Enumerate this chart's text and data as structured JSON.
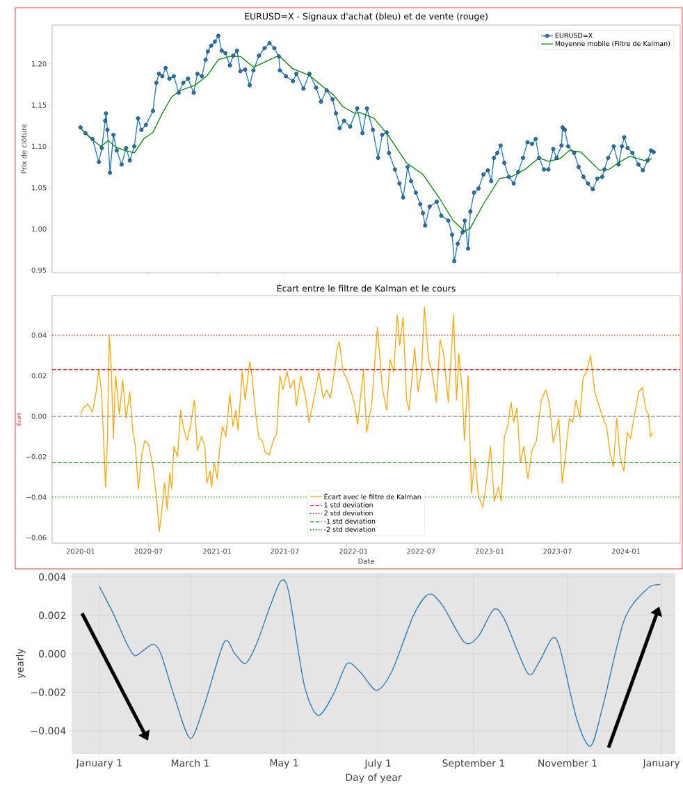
{
  "chart_data": [
    {
      "type": "line",
      "title": "EURUSD=X - Signaux d'achat (bleu) et de vente (rouge)",
      "ylabel": "Prix de clôture",
      "xlim": [
        "2019-10-17",
        "2024-05-25"
      ],
      "xticks": [
        "2020-01",
        "2020-07",
        "2021-01",
        "2021-07",
        "2022-01",
        "2022-07",
        "2023-01",
        "2023-07",
        "2024-01"
      ],
      "ylim": [
        0.947,
        1.247
      ],
      "yticks": [
        0.95,
        {
          "value": 1.0,
          "label": "1.00"
        },
        1.05,
        {
          "value": 1.1,
          "label": "1.10"
        },
        1.15,
        {
          "value": 1.2,
          "label": "1.20"
        }
      ],
      "tick_labels": "y",
      "legend": "top right",
      "marker": "circle",
      "series": [
        {
          "name": "EURUSD=X",
          "color": "#1f77b4",
          "x": [
            "2020-01-01",
            "2020-01-14",
            "2020-02-02",
            "2020-02-19",
            "2020-02-27",
            "2020-03-07",
            "2020-03-09",
            "2020-03-13",
            "2020-03-20",
            "2020-03-29",
            "2020-04-07",
            "2020-04-20",
            "2020-05-02",
            "2020-05-12",
            "2020-05-24",
            "2020-06-03",
            "2020-06-12",
            "2020-06-24",
            "2020-07-13",
            "2020-07-22",
            "2020-07-29",
            "2020-08-07",
            "2020-08-16",
            "2020-08-26",
            "2020-09-07",
            "2020-09-20",
            "2020-10-02",
            "2020-10-15",
            "2020-10-30",
            "2020-11-09",
            "2020-11-21",
            "2020-12-01",
            "2020-12-07",
            "2020-12-16",
            "2020-12-26",
            "2021-01-04",
            "2021-01-13",
            "2021-01-23",
            "2021-02-04",
            "2021-02-13",
            "2021-02-23",
            "2021-03-04",
            "2021-03-17",
            "2021-03-29",
            "2021-04-08",
            "2021-04-23",
            "2021-05-08",
            "2021-05-21",
            "2021-06-03",
            "2021-06-15",
            "2021-06-18",
            "2021-07-04",
            "2021-07-23",
            "2021-08-01",
            "2021-08-20",
            "2021-09-05",
            "2021-09-23",
            "2021-10-06",
            "2021-10-21",
            "2021-11-06",
            "2021-11-15",
            "2021-11-25",
            "2021-12-07",
            "2021-12-23",
            "2022-01-11",
            "2022-01-25",
            "2022-02-06",
            "2022-02-22",
            "2022-03-08",
            "2022-03-19",
            "2022-03-31",
            "2022-04-06",
            "2022-04-22",
            "2022-05-04",
            "2022-05-14",
            "2022-05-26",
            "2022-06-04",
            "2022-06-17",
            "2022-06-29",
            "2022-07-06",
            "2022-07-12",
            "2022-07-24",
            "2022-08-12",
            "2022-08-24",
            "2022-09-12",
            "2022-09-22",
            "2022-09-28",
            "2022-10-07",
            "2022-10-20",
            "2022-10-26",
            "2022-11-04",
            "2022-11-10",
            "2022-11-20",
            "2022-12-02",
            "2022-12-15",
            "2022-12-27",
            "2023-01-05",
            "2023-01-12",
            "2023-01-21",
            "2023-01-30",
            "2023-02-09",
            "2023-02-21",
            "2023-03-06",
            "2023-03-18",
            "2023-03-31",
            "2023-04-12",
            "2023-04-24",
            "2023-05-04",
            "2023-05-13",
            "2023-05-26",
            "2023-06-07",
            "2023-06-20",
            "2023-06-29",
            "2023-07-12",
            "2023-07-15",
            "2023-07-21",
            "2023-07-30",
            "2023-08-15",
            "2023-08-27",
            "2023-09-09",
            "2023-09-21",
            "2023-10-04",
            "2023-10-16",
            "2023-10-29",
            "2023-11-04",
            "2023-11-14",
            "2023-11-29",
            "2023-12-12",
            "2023-12-21",
            "2023-12-27",
            "2024-01-05",
            "2024-01-18",
            "2024-02-03",
            "2024-02-15",
            "2024-02-28",
            "2024-03-08",
            "2024-03-15"
          ],
          "values": [
            1.123,
            1.116,
            1.109,
            1.081,
            1.098,
            1.131,
            1.14,
            1.12,
            1.068,
            1.114,
            1.095,
            1.078,
            1.098,
            1.083,
            1.1,
            1.134,
            1.12,
            1.126,
            1.143,
            1.177,
            1.188,
            1.185,
            1.195,
            1.182,
            1.185,
            1.165,
            1.177,
            1.182,
            1.165,
            1.188,
            1.185,
            1.205,
            1.215,
            1.222,
            1.227,
            1.234,
            1.216,
            1.213,
            1.198,
            1.21,
            1.216,
            1.191,
            1.193,
            1.174,
            1.192,
            1.21,
            1.219,
            1.225,
            1.219,
            1.209,
            1.192,
            1.185,
            1.179,
            1.188,
            1.17,
            1.188,
            1.171,
            1.154,
            1.168,
            1.157,
            1.14,
            1.122,
            1.131,
            1.124,
            1.146,
            1.116,
            1.146,
            1.12,
            1.086,
            1.114,
            1.117,
            1.092,
            1.072,
            1.055,
            1.038,
            1.075,
            1.058,
            1.044,
            1.03,
            1.019,
            1.004,
            1.027,
            1.033,
            1.016,
            1.01,
            0.993,
            0.961,
            0.982,
            0.996,
            1.01,
            0.976,
            1.021,
            1.044,
            1.049,
            1.066,
            1.071,
            1.058,
            1.086,
            1.092,
            1.101,
            1.08,
            1.063,
            1.055,
            1.069,
            1.086,
            1.105,
            1.103,
            1.109,
            1.086,
            1.072,
            1.072,
            1.097,
            1.086,
            1.101,
            1.123,
            1.12,
            1.1,
            1.092,
            1.075,
            1.063,
            1.055,
            1.048,
            1.061,
            1.063,
            1.072,
            1.086,
            1.1,
            1.078,
            1.1,
            1.111,
            1.098,
            1.092,
            1.078,
            1.071,
            1.083,
            1.095,
            1.093
          ]
        },
        {
          "name": "Moyenne mobile (Filtre de Kalman)",
          "color": "#008000",
          "marker": "none",
          "x": [
            "2020-01-01",
            "2020-01-27",
            "2020-02-24",
            "2020-03-16",
            "2020-04-04",
            "2020-04-29",
            "2020-05-24",
            "2020-06-18",
            "2020-07-13",
            "2020-08-07",
            "2020-09-01",
            "2020-09-26",
            "2020-11-02",
            "2020-12-04",
            "2021-01-04",
            "2021-02-04",
            "2021-03-04",
            "2021-04-08",
            "2021-05-08",
            "2021-06-15",
            "2021-07-23",
            "2021-09-05",
            "2021-10-12",
            "2021-11-09",
            "2021-12-04",
            "2022-01-04",
            "2022-01-18",
            "2022-02-25",
            "2022-04-03",
            "2022-05-23",
            "2022-07-06",
            "2022-08-18",
            "2022-09-25",
            "2022-10-26",
            "2022-11-10",
            "2022-12-15",
            "2023-01-27",
            "2023-02-27",
            "2023-04-05",
            "2023-05-13",
            "2023-06-07",
            "2023-07-08",
            "2023-08-02",
            "2023-09-02",
            "2023-10-22",
            "2023-11-16",
            "2023-12-11",
            "2024-01-11",
            "2024-02-18",
            "2024-03-10"
          ],
          "values": [
            1.122,
            1.11,
            1.1,
            1.107,
            1.099,
            1.095,
            1.092,
            1.109,
            1.117,
            1.14,
            1.16,
            1.168,
            1.174,
            1.185,
            1.205,
            1.209,
            1.209,
            1.196,
            1.202,
            1.21,
            1.194,
            1.186,
            1.172,
            1.162,
            1.148,
            1.14,
            1.141,
            1.134,
            1.114,
            1.08,
            1.066,
            1.038,
            1.01,
            0.997,
            1.001,
            1.03,
            1.061,
            1.063,
            1.072,
            1.086,
            1.082,
            1.085,
            1.095,
            1.093,
            1.071,
            1.072,
            1.08,
            1.088,
            1.083,
            1.085
          ]
        }
      ]
    },
    {
      "type": "line",
      "title": "Écart entre le filtre de Kalman et le cours",
      "xlabel": "Date",
      "ylabel": "Écart",
      "xlim": [
        "2019-10-17",
        "2024-05-25"
      ],
      "xticks": [
        "2020-01",
        "2020-07",
        "2021-01",
        "2021-07",
        "2022-01",
        "2022-07",
        "2023-01",
        "2023-07",
        "2024-01"
      ],
      "ylim": [
        -0.0627,
        0.0596
      ],
      "yticks": [
        {
          "value": -0.06,
          "label": "−0.06"
        },
        {
          "value": -0.04,
          "label": "−0.04"
        },
        {
          "value": -0.02,
          "label": "−0.02"
        },
        {
          "value": 0,
          "label": "0.00"
        },
        0.02,
        0.04
      ],
      "legend": "bottom",
      "series": [
        {
          "name": "Écart avec le filtre de Kalman",
          "color": "#ffa500",
          "x": [
            "2020-01-01",
            "2020-01-08",
            "2020-01-20",
            "2020-02-02",
            "2020-02-11",
            "2020-02-19",
            "2020-02-26",
            "2020-03-03",
            "2020-03-08",
            "2020-03-13",
            "2020-03-18",
            "2020-03-23",
            "2020-03-29",
            "2020-04-04",
            "2020-04-14",
            "2020-04-23",
            "2020-05-02",
            "2020-05-12",
            "2020-05-19",
            "2020-05-27",
            "2020-06-04",
            "2020-06-13",
            "2020-06-21",
            "2020-07-01",
            "2020-07-13",
            "2020-07-23",
            "2020-07-30",
            "2020-08-07",
            "2020-08-13",
            "2020-08-20",
            "2020-08-27",
            "2020-09-01",
            "2020-09-07",
            "2020-09-17",
            "2020-09-25",
            "2020-10-02",
            "2020-10-12",
            "2020-10-21",
            "2020-11-01",
            "2020-11-09",
            "2020-11-20",
            "2020-11-29",
            "2020-12-04",
            "2020-12-13",
            "2020-12-17",
            "2020-12-24",
            "2021-01-01",
            "2021-01-07",
            "2021-01-15",
            "2021-01-24",
            "2021-02-04",
            "2021-02-12",
            "2021-02-20",
            "2021-02-26",
            "2021-03-09",
            "2021-03-17",
            "2021-03-29",
            "2021-04-04",
            "2021-04-14",
            "2021-04-23",
            "2021-05-01",
            "2021-05-10",
            "2021-05-21",
            "2021-05-31",
            "2021-06-09",
            "2021-06-18",
            "2021-06-26",
            "2021-07-07",
            "2021-07-16",
            "2021-07-26",
            "2021-08-01",
            "2021-08-13",
            "2021-08-26",
            "2021-09-04",
            "2021-09-12",
            "2021-09-23",
            "2021-09-30",
            "2021-10-12",
            "2021-10-21",
            "2021-10-31",
            "2021-11-11",
            "2021-11-18",
            "2021-11-24",
            "2021-12-04",
            "2021-12-13",
            "2021-12-26",
            "2022-01-04",
            "2022-01-12",
            "2022-01-28",
            "2022-02-05",
            "2022-02-19",
            "2022-03-06",
            "2022-03-19",
            "2022-03-31",
            "2022-04-09",
            "2022-04-19",
            "2022-04-28",
            "2022-05-05",
            "2022-05-14",
            "2022-05-23",
            "2022-05-30",
            "2022-06-14",
            "2022-06-23",
            "2022-07-02",
            "2022-07-10",
            "2022-07-21",
            "2022-07-30",
            "2022-08-11",
            "2022-08-21",
            "2022-08-30",
            "2022-09-12",
            "2022-09-26",
            "2022-10-04",
            "2022-10-10",
            "2022-10-19",
            "2022-10-25",
            "2022-11-04",
            "2022-11-13",
            "2022-11-22",
            "2022-12-02",
            "2022-12-14",
            "2022-12-24",
            "2023-01-03",
            "2023-01-13",
            "2023-01-24",
            "2023-02-01",
            "2023-02-09",
            "2023-02-18",
            "2023-02-27",
            "2023-03-06",
            "2023-03-15",
            "2023-03-24",
            "2023-04-02",
            "2023-04-13",
            "2023-04-24",
            "2023-05-06",
            "2023-05-19",
            "2023-05-31",
            "2023-06-10",
            "2023-06-20",
            "2023-07-05",
            "2023-07-14",
            "2023-07-23",
            "2023-08-02",
            "2023-08-11",
            "2023-08-20",
            "2023-08-30",
            "2023-09-08",
            "2023-09-17",
            "2023-09-28",
            "2023-10-09",
            "2023-10-21",
            "2023-11-02",
            "2023-11-10",
            "2023-11-18",
            "2023-11-28",
            "2023-12-07",
            "2023-12-16",
            "2023-12-26",
            "2024-01-04",
            "2024-01-13",
            "2024-01-23",
            "2024-02-04",
            "2024-02-14",
            "2024-02-23",
            "2024-03-01",
            "2024-03-06",
            "2024-03-13"
          ],
          "values": [
            0.001,
            0.004,
            0.006,
            0.002,
            0.011,
            0.023,
            0.012,
            -0.012,
            -0.035,
            -0.011,
            0.04,
            0.025,
            -0.011,
            0.02,
            0.001,
            0.018,
            -0.001,
            0.012,
            -0.006,
            -0.015,
            -0.036,
            -0.019,
            -0.012,
            -0.014,
            -0.025,
            -0.041,
            -0.057,
            -0.044,
            -0.033,
            -0.046,
            -0.028,
            -0.036,
            -0.015,
            -0.02,
            0.003,
            -0.005,
            -0.012,
            -0.005,
            0.008,
            -0.017,
            -0.01,
            -0.015,
            -0.033,
            -0.027,
            -0.035,
            -0.023,
            -0.031,
            -0.017,
            -0.005,
            -0.01,
            0.011,
            -0.005,
            0.003,
            -0.007,
            0.022,
            0.008,
            0.027,
            0.02,
            0.001,
            -0.011,
            -0.012,
            -0.018,
            -0.019,
            -0.012,
            -0.009,
            0.02,
            0.013,
            0.022,
            0.014,
            0.018,
            0.005,
            0.02,
            0.009,
            -0.003,
            0.004,
            0.014,
            0.022,
            0.009,
            0.013,
            0.009,
            0.022,
            0.033,
            0.037,
            0.022,
            0.019,
            0.012,
            0.006,
            -0.004,
            0.023,
            -0.008,
            0.006,
            0.044,
            0.014,
            0.003,
            0.028,
            0.022,
            0.05,
            0.035,
            0.049,
            0.008,
            0.003,
            0.034,
            0.012,
            0.022,
            0.054,
            0.028,
            0.022,
            0.007,
            0.038,
            0.031,
            0.007,
            0.05,
            0.008,
            0.031,
            0.013,
            -0.012,
            0.02,
            -0.038,
            -0.021,
            -0.04,
            -0.045,
            -0.031,
            -0.015,
            -0.042,
            -0.035,
            -0.042,
            -0.01,
            -0.005,
            0.007,
            -0.003,
            0.004,
            -0.023,
            -0.015,
            -0.031,
            -0.017,
            -0.012,
            0.008,
            0.013,
            0.006,
            -0.013,
            -0.001,
            -0.033,
            -0.019,
            -0.001,
            -0.003,
            0.008,
            -0.001,
            0.019,
            0.022,
            0.03,
            0.012,
            0.005,
            -0.002,
            -0.005,
            -0.017,
            -0.025,
            -0.001,
            -0.02,
            -0.027,
            -0.008,
            -0.011,
            0.0,
            0.012,
            0.014,
            0.003,
            0.001,
            -0.01,
            -0.008
          ]
        }
      ],
      "ref_lines": [
        {
          "axis": "y",
          "value": 0,
          "color": "#808080",
          "line_style": "dashed"
        },
        {
          "axis": "y",
          "value": 0.023,
          "label": "1 std deviation",
          "color": "#ff0000",
          "line_style": "dashed"
        },
        {
          "axis": "y",
          "value": 0.04,
          "label": "2 std deviation",
          "color": "#ff0000",
          "line_style": "dotted"
        },
        {
          "axis": "y",
          "value": -0.023,
          "label": "-1 std deviation",
          "color": "#008000",
          "line_style": "dashed"
        },
        {
          "axis": "y",
          "value": -0.04,
          "label": "-2 std deviation",
          "color": "#008000",
          "line_style": "dotted"
        }
      ]
    },
    {
      "type": "line",
      "xlabel": "Day of year",
      "ylabel": "yearly",
      "xlim": [
        "2020-12-14",
        "2022-01-10"
      ],
      "xticks": [
        {
          "value": "2021-01-01",
          "label": "January 1"
        },
        {
          "value": "2021-03-01",
          "label": "March 1"
        },
        {
          "value": "2021-05-01",
          "label": "May 1"
        },
        {
          "value": "2021-07-01",
          "label": "July 1"
        },
        {
          "value": "2021-09-01",
          "label": "September 1"
        },
        {
          "value": "2021-11-01",
          "label": "November 1"
        },
        {
          "value": "2022-01-01",
          "label": "January"
        }
      ],
      "ylim": [
        -0.0052,
        0.0042
      ],
      "yticks": [
        {
          "value": -0.004,
          "label": "−0.004"
        },
        {
          "value": -0.002,
          "label": "−0.002"
        },
        {
          "value": 0,
          "label": "0.000"
        },
        0.002,
        0.004
      ],
      "grid": true,
      "series": [
        {
          "color": "#1f77b4",
          "x": [
            "2021-01-01",
            "2021-01-10",
            "2021-01-19",
            "2021-01-24",
            "2021-01-30",
            "2021-02-05",
            "2021-02-10",
            "2021-02-19",
            "2021-03-01",
            "2021-03-10",
            "2021-03-23",
            "2021-03-30",
            "2021-04-06",
            "2021-04-13",
            "2021-04-22",
            "2021-04-29",
            "2021-05-04",
            "2021-05-14",
            "2021-05-23",
            "2021-06-02",
            "2021-06-11",
            "2021-06-20",
            "2021-06-30",
            "2021-07-10",
            "2021-07-24",
            "2021-08-03",
            "2021-08-12",
            "2021-08-26",
            "2021-09-04",
            "2021-09-14",
            "2021-09-21",
            "2021-10-06",
            "2021-10-13",
            "2021-10-22",
            "2021-10-27",
            "2021-11-07",
            "2021-11-16",
            "2021-11-24",
            "2021-12-08",
            "2021-12-23",
            "2021-12-30",
            "2021-12-31"
          ],
          "values": [
            0.0035,
            0.0021,
            0.0005,
            -0.0001,
            0.0002,
            0.0005,
            0.0,
            -0.0023,
            -0.0044,
            -0.0027,
            0.0006,
            0.0,
            -0.0005,
            0.0005,
            0.0025,
            0.0038,
            0.0032,
            -0.0016,
            -0.0032,
            -0.0021,
            -0.0005,
            -0.001,
            -0.0019,
            -0.0009,
            0.002,
            0.0031,
            0.0025,
            0.0006,
            0.0009,
            0.0023,
            0.0018,
            -0.001,
            -0.0005,
            0.0008,
            0.0003,
            -0.0034,
            -0.0048,
            -0.0027,
            0.0018,
            0.0034,
            0.0036,
            0.0036
          ]
        }
      ]
    }
  ]
}
